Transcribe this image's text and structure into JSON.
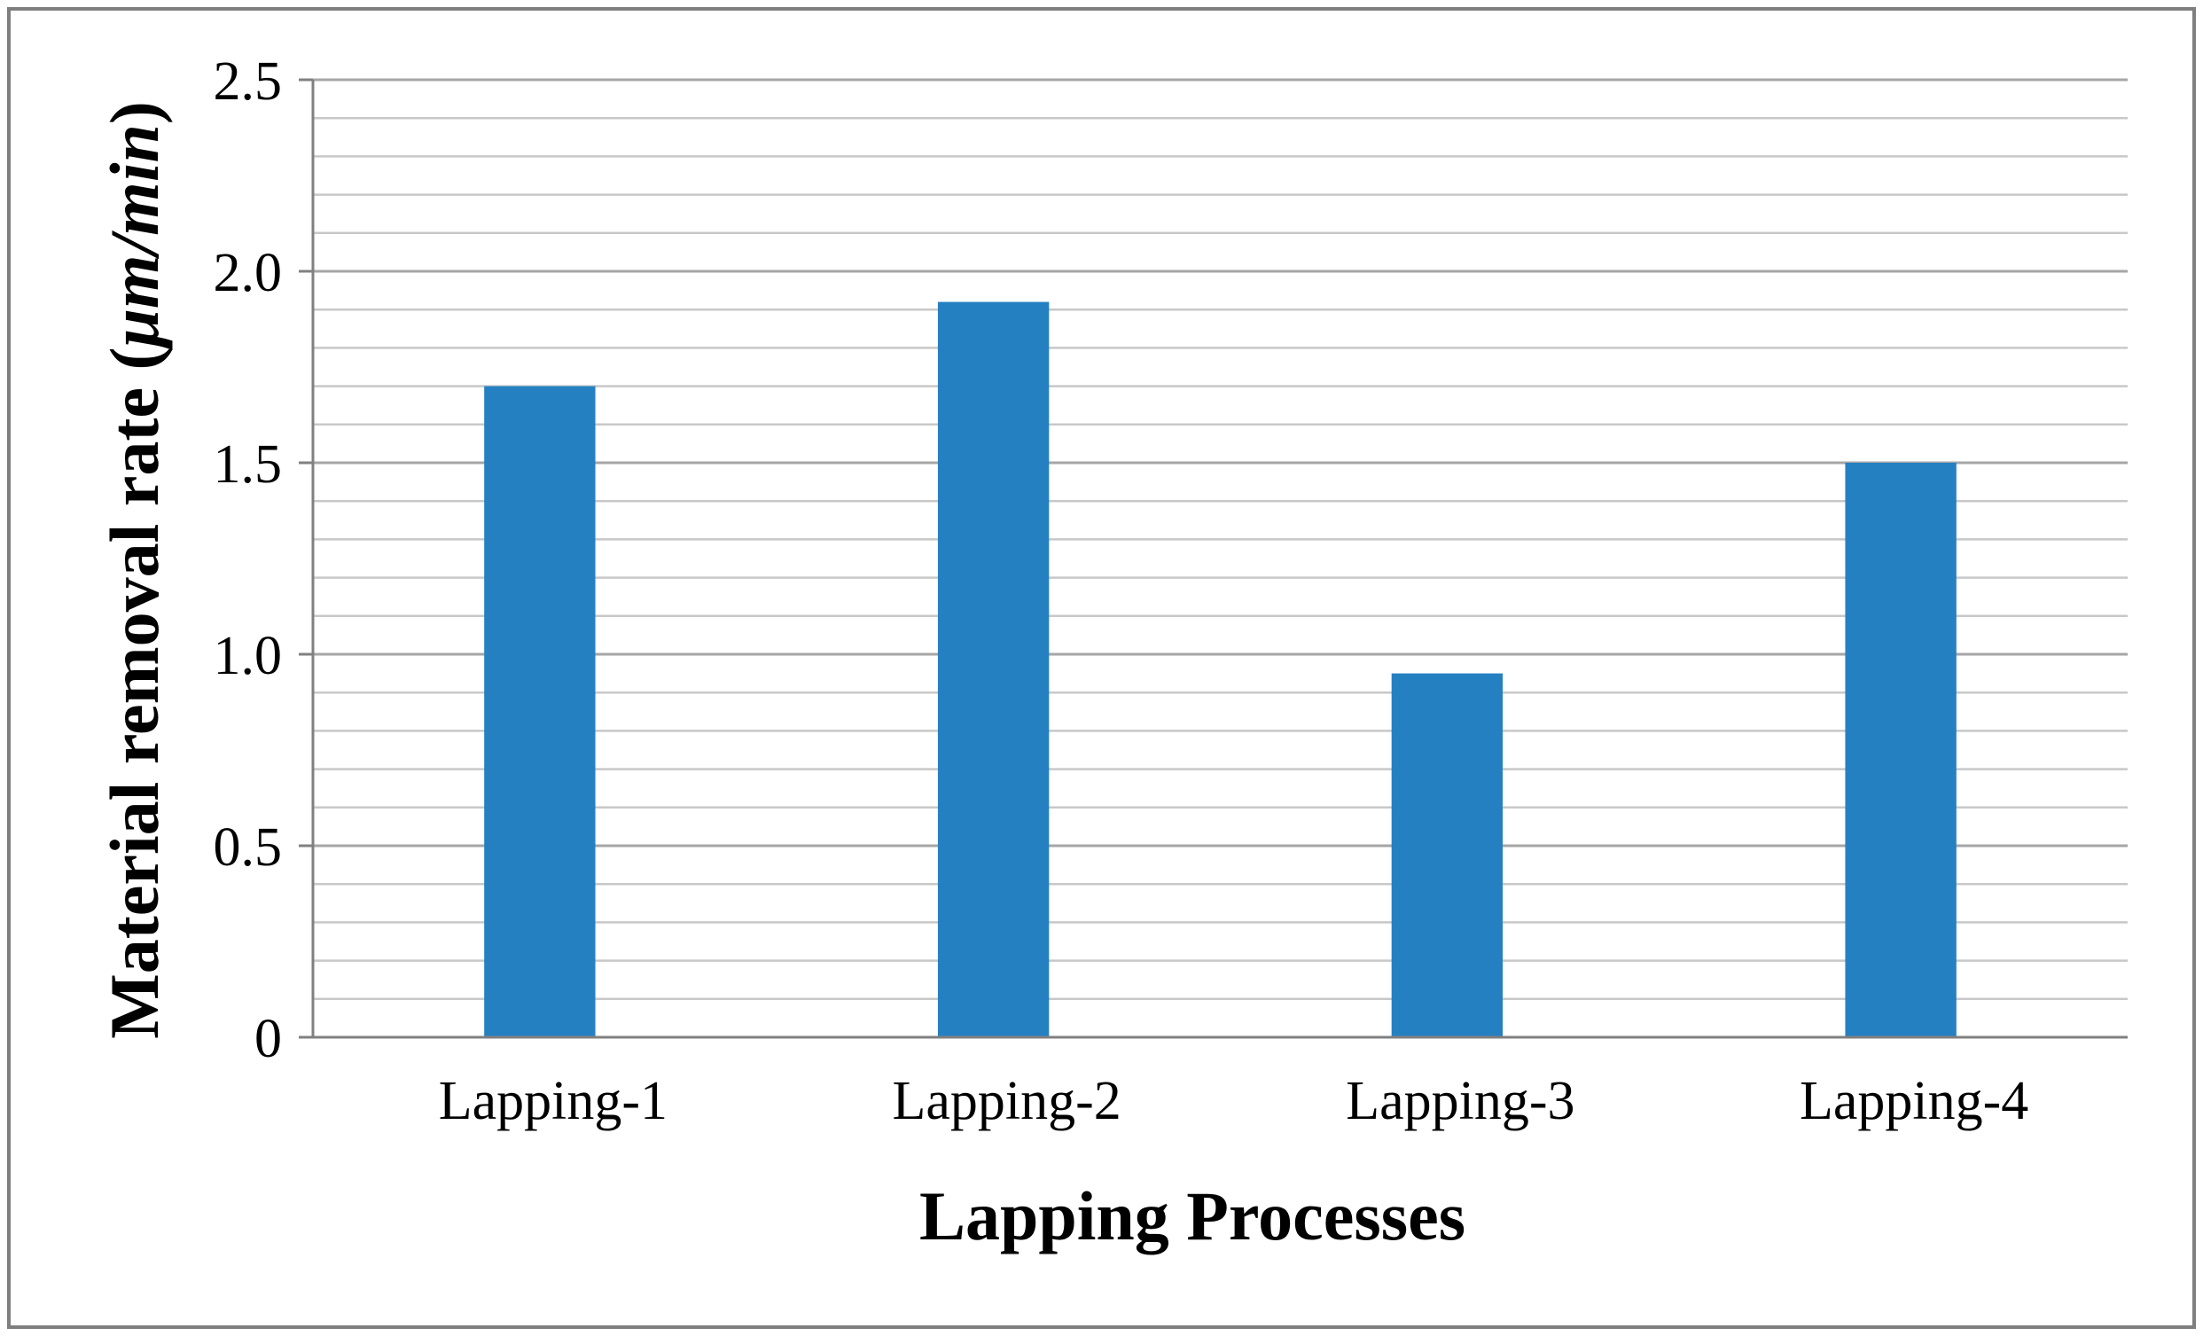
{
  "chart_data": {
    "type": "bar",
    "title": "",
    "xlabel": "Lapping Processes",
    "ylabel_prefix": "Material removal rate (",
    "ylabel_unit": "μm/min",
    "ylabel_suffix": ")",
    "categories": [
      "Lapping-1",
      "Lapping-2",
      "Lapping-3",
      "Lapping-4"
    ],
    "values": [
      1.7,
      1.92,
      0.95,
      1.5
    ],
    "ylim": [
      0,
      2.5
    ],
    "y_major_ticks": [
      0,
      0.5,
      1.0,
      1.5,
      2.0,
      2.5
    ],
    "y_tick_labels": [
      "0",
      "0.5",
      "1.0",
      "1.5",
      "2.0",
      "2.5"
    ],
    "y_minor_step": 0.1,
    "grid": true,
    "legend": "none",
    "colors": {
      "bar": "#2580C2",
      "major_grid": "#A6A6A6",
      "minor_grid": "#C8C8C8",
      "axis": "#808080",
      "frame": "#7F7F7F"
    }
  }
}
